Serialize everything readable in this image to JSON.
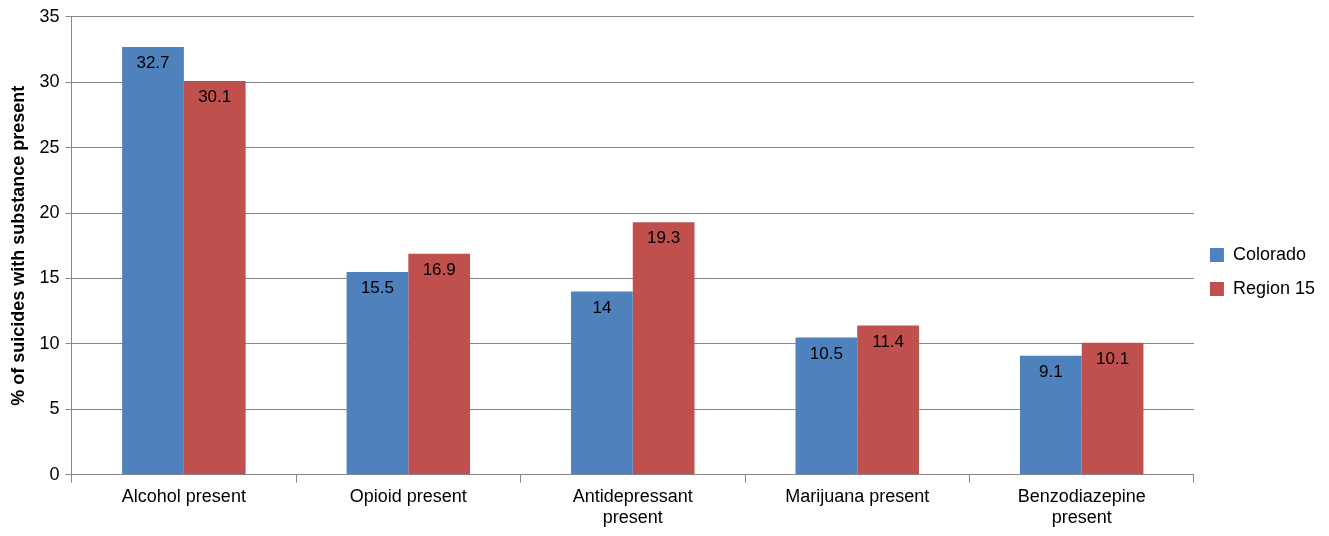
{
  "chart_data": {
    "type": "bar",
    "ylabel": "% of suicides with substance present",
    "categories": [
      "Alcohol present",
      "Opioid present",
      "Antidepressant present",
      "Marijuana present",
      "Benzodiazepine present"
    ],
    "series": [
      {
        "name": "Colorado",
        "color": "#4f81bd",
        "values": [
          32.7,
          15.5,
          14,
          10.5,
          9.1
        ]
      },
      {
        "name": "Region 15",
        "color": "#c0504d",
        "values": [
          30.1,
          16.9,
          19.3,
          11.4,
          10.1
        ]
      }
    ],
    "ylim": [
      0,
      35
    ],
    "yticks": [
      0,
      5,
      10,
      15,
      20,
      25,
      30,
      35
    ],
    "grid": "y",
    "legend": "right",
    "data_labels": true
  }
}
